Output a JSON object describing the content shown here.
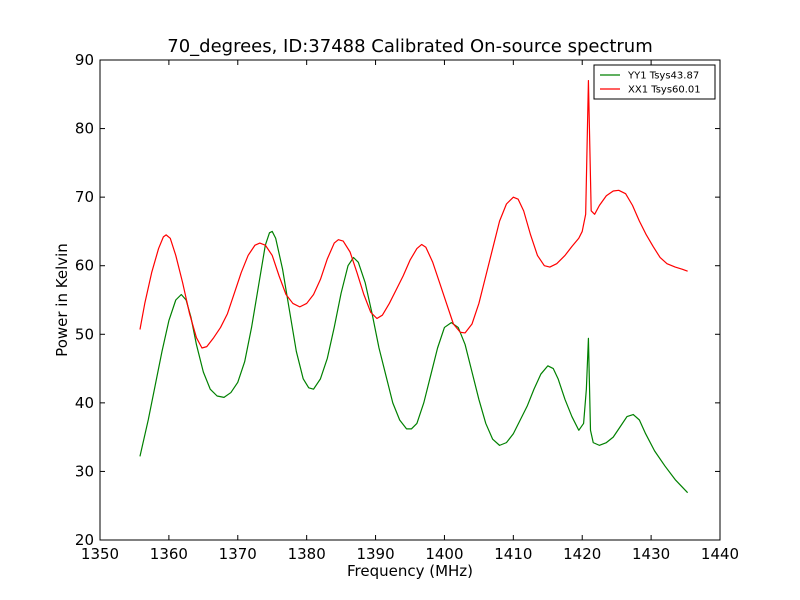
{
  "chart_data": {
    "type": "line",
    "title": "70_degrees, ID:37488 Calibrated On-source spectrum",
    "xlabel": "Frequency (MHz)",
    "ylabel": "Power in Kelvin",
    "xlim": [
      1350,
      1440
    ],
    "ylim": [
      20,
      90
    ],
    "xticks": [
      1350,
      1360,
      1370,
      1380,
      1390,
      1400,
      1410,
      1420,
      1430,
      1440
    ],
    "yticks": [
      20,
      30,
      40,
      50,
      60,
      70,
      80,
      90
    ],
    "grid": false,
    "legend_position": "top-right",
    "series": [
      {
        "name": "YY1 Tsys43.87",
        "color": "#008000",
        "points": [
          [
            1355.8,
            32.2
          ],
          [
            1357.0,
            37.5
          ],
          [
            1358.0,
            42.5
          ],
          [
            1359.0,
            47.5
          ],
          [
            1360.0,
            52.0
          ],
          [
            1361.0,
            55.0
          ],
          [
            1361.8,
            55.8
          ],
          [
            1362.5,
            55.0
          ],
          [
            1363.2,
            52.5
          ],
          [
            1364.0,
            48.5
          ],
          [
            1365.0,
            44.5
          ],
          [
            1366.0,
            42.0
          ],
          [
            1367.0,
            41.0
          ],
          [
            1368.0,
            40.8
          ],
          [
            1369.0,
            41.5
          ],
          [
            1370.0,
            43.0
          ],
          [
            1371.0,
            46.0
          ],
          [
            1372.0,
            51.0
          ],
          [
            1373.0,
            57.0
          ],
          [
            1374.0,
            63.0
          ],
          [
            1374.6,
            64.8
          ],
          [
            1375.0,
            65.0
          ],
          [
            1375.5,
            64.0
          ],
          [
            1376.5,
            59.5
          ],
          [
            1377.5,
            53.5
          ],
          [
            1378.5,
            47.5
          ],
          [
            1379.5,
            43.5
          ],
          [
            1380.3,
            42.2
          ],
          [
            1381.0,
            42.0
          ],
          [
            1382.0,
            43.5
          ],
          [
            1383.0,
            46.5
          ],
          [
            1384.0,
            51.0
          ],
          [
            1385.0,
            56.0
          ],
          [
            1386.0,
            60.0
          ],
          [
            1386.8,
            61.2
          ],
          [
            1387.5,
            60.5
          ],
          [
            1388.5,
            57.5
          ],
          [
            1389.5,
            53.0
          ],
          [
            1390.5,
            48.0
          ],
          [
            1391.5,
            44.0
          ],
          [
            1392.5,
            40.0
          ],
          [
            1393.5,
            37.5
          ],
          [
            1394.5,
            36.2
          ],
          [
            1395.2,
            36.2
          ],
          [
            1396.0,
            37.0
          ],
          [
            1397.0,
            40.0
          ],
          [
            1398.0,
            44.0
          ],
          [
            1399.0,
            48.0
          ],
          [
            1400.0,
            51.0
          ],
          [
            1401.0,
            51.7
          ],
          [
            1402.0,
            51.0
          ],
          [
            1403.0,
            48.5
          ],
          [
            1404.0,
            44.5
          ],
          [
            1405.0,
            40.5
          ],
          [
            1406.0,
            37.0
          ],
          [
            1407.0,
            34.7
          ],
          [
            1408.0,
            33.8
          ],
          [
            1409.0,
            34.2
          ],
          [
            1410.0,
            35.5
          ],
          [
            1411.0,
            37.5
          ],
          [
            1412.0,
            39.5
          ],
          [
            1413.0,
            42.0
          ],
          [
            1414.0,
            44.2
          ],
          [
            1415.0,
            45.4
          ],
          [
            1415.8,
            45.0
          ],
          [
            1416.5,
            43.5
          ],
          [
            1417.5,
            40.5
          ],
          [
            1418.5,
            38.0
          ],
          [
            1419.5,
            36.0
          ],
          [
            1420.2,
            37.0
          ],
          [
            1420.6,
            42.0
          ],
          [
            1420.9,
            49.4
          ],
          [
            1421.2,
            36.0
          ],
          [
            1421.6,
            34.2
          ],
          [
            1422.5,
            33.8
          ],
          [
            1423.5,
            34.2
          ],
          [
            1424.5,
            35.0
          ],
          [
            1425.5,
            36.5
          ],
          [
            1426.5,
            38.0
          ],
          [
            1427.4,
            38.3
          ],
          [
            1428.3,
            37.5
          ],
          [
            1429.2,
            35.5
          ],
          [
            1430.5,
            33.0
          ],
          [
            1432.0,
            30.8
          ],
          [
            1433.5,
            28.8
          ],
          [
            1435.3,
            26.9
          ]
        ]
      },
      {
        "name": "XX1 Tsys60.01",
        "color": "#ff0000",
        "points": [
          [
            1355.8,
            50.7
          ],
          [
            1356.5,
            54.5
          ],
          [
            1357.5,
            59.0
          ],
          [
            1358.5,
            62.5
          ],
          [
            1359.2,
            64.2
          ],
          [
            1359.6,
            64.5
          ],
          [
            1360.2,
            64.0
          ],
          [
            1361.0,
            61.5
          ],
          [
            1362.0,
            57.5
          ],
          [
            1363.0,
            53.0
          ],
          [
            1364.0,
            49.5
          ],
          [
            1364.8,
            48.0
          ],
          [
            1365.5,
            48.2
          ],
          [
            1366.5,
            49.5
          ],
          [
            1367.5,
            51.0
          ],
          [
            1368.5,
            53.0
          ],
          [
            1369.5,
            56.0
          ],
          [
            1370.5,
            59.0
          ],
          [
            1371.5,
            61.5
          ],
          [
            1372.5,
            63.0
          ],
          [
            1373.2,
            63.3
          ],
          [
            1374.0,
            63.0
          ],
          [
            1375.0,
            61.5
          ],
          [
            1376.0,
            58.5
          ],
          [
            1377.0,
            55.8
          ],
          [
            1378.0,
            54.5
          ],
          [
            1379.0,
            54.0
          ],
          [
            1380.0,
            54.5
          ],
          [
            1381.0,
            55.8
          ],
          [
            1382.0,
            58.0
          ],
          [
            1383.0,
            61.0
          ],
          [
            1384.0,
            63.3
          ],
          [
            1384.6,
            63.8
          ],
          [
            1385.3,
            63.6
          ],
          [
            1386.3,
            62.0
          ],
          [
            1387.3,
            59.0
          ],
          [
            1388.3,
            55.8
          ],
          [
            1389.3,
            53.2
          ],
          [
            1390.2,
            52.3
          ],
          [
            1391.0,
            52.8
          ],
          [
            1392.0,
            54.5
          ],
          [
            1393.0,
            56.5
          ],
          [
            1394.0,
            58.5
          ],
          [
            1395.0,
            60.8
          ],
          [
            1396.0,
            62.5
          ],
          [
            1396.7,
            63.1
          ],
          [
            1397.3,
            62.7
          ],
          [
            1398.3,
            60.5
          ],
          [
            1399.3,
            57.5
          ],
          [
            1400.3,
            54.5
          ],
          [
            1401.3,
            51.5
          ],
          [
            1402.3,
            50.3
          ],
          [
            1403.0,
            50.2
          ],
          [
            1404.0,
            51.5
          ],
          [
            1405.0,
            54.5
          ],
          [
            1406.0,
            58.5
          ],
          [
            1407.0,
            62.5
          ],
          [
            1408.0,
            66.5
          ],
          [
            1409.0,
            69.0
          ],
          [
            1410.0,
            70.0
          ],
          [
            1410.7,
            69.7
          ],
          [
            1411.5,
            68.0
          ],
          [
            1412.5,
            64.5
          ],
          [
            1413.5,
            61.5
          ],
          [
            1414.5,
            60.0
          ],
          [
            1415.3,
            59.8
          ],
          [
            1416.3,
            60.3
          ],
          [
            1417.5,
            61.5
          ],
          [
            1418.5,
            62.8
          ],
          [
            1419.5,
            64.0
          ],
          [
            1420.0,
            65.0
          ],
          [
            1420.5,
            67.5
          ],
          [
            1420.9,
            87.0
          ],
          [
            1421.3,
            68.0
          ],
          [
            1421.8,
            67.5
          ],
          [
            1422.5,
            68.8
          ],
          [
            1423.5,
            70.2
          ],
          [
            1424.5,
            70.9
          ],
          [
            1425.3,
            71.0
          ],
          [
            1426.3,
            70.5
          ],
          [
            1427.3,
            68.8
          ],
          [
            1428.3,
            66.5
          ],
          [
            1429.3,
            64.5
          ],
          [
            1430.3,
            62.8
          ],
          [
            1431.3,
            61.2
          ],
          [
            1432.3,
            60.3
          ],
          [
            1433.5,
            59.8
          ],
          [
            1434.5,
            59.5
          ],
          [
            1435.3,
            59.2
          ]
        ]
      }
    ]
  }
}
